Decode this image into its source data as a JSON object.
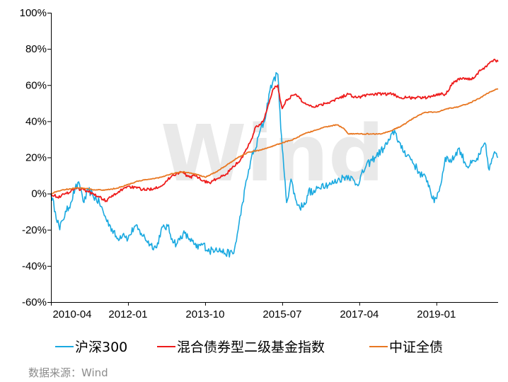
{
  "chart_data": {
    "type": "line",
    "title": "",
    "xlabel": "",
    "ylabel": "",
    "ylim": [
      -60,
      100
    ],
    "y_ticks": [
      -60,
      -40,
      -20,
      0,
      20,
      40,
      60,
      80,
      100
    ],
    "y_tick_labels": [
      "-60%",
      "-40%",
      "-20%",
      "0%",
      "20%",
      "40%",
      "60%",
      "80%",
      "100%"
    ],
    "x_tick_labels": [
      "2010-04",
      "2012-01",
      "2013-10",
      "2015-07",
      "2017-04",
      "2019-01"
    ],
    "x_tick_positions": [
      2010.25,
      2012.0,
      2013.75,
      2015.5,
      2017.25,
      2019.0
    ],
    "xlim": [
      2010.25,
      2020.4
    ],
    "grid": false,
    "legend_position": "bottom",
    "watermark": "Wind",
    "series": [
      {
        "name": "沪深300",
        "color": "#1aa9e0",
        "x": [
          2010.25,
          2010.35,
          2010.45,
          2010.5,
          2010.6,
          2010.7,
          2010.8,
          2010.9,
          2011.0,
          2011.1,
          2011.2,
          2011.35,
          2011.5,
          2011.6,
          2011.75,
          2011.9,
          2012.0,
          2012.15,
          2012.3,
          2012.5,
          2012.65,
          2012.75,
          2012.9,
          2013.0,
          2013.1,
          2013.25,
          2013.4,
          2013.55,
          2013.7,
          2013.85,
          2014.0,
          2014.2,
          2014.4,
          2014.5,
          2014.6,
          2014.7,
          2014.8,
          2014.9,
          2015.0,
          2015.1,
          2015.2,
          2015.3,
          2015.4,
          2015.45,
          2015.5,
          2015.55,
          2015.6,
          2015.7,
          2015.8,
          2015.9,
          2016.0,
          2016.05,
          2016.1,
          2016.2,
          2016.4,
          2016.6,
          2016.8,
          2017.0,
          2017.2,
          2017.4,
          2017.6,
          2017.8,
          2017.95,
          2018.05,
          2018.2,
          2018.4,
          2018.6,
          2018.8,
          2018.95,
          2019.1,
          2019.2,
          2019.35,
          2019.5,
          2019.7,
          2019.9,
          2020.0,
          2020.1,
          2020.2,
          2020.3,
          2020.4
        ],
        "values": [
          0,
          -10,
          -20,
          -15,
          -10,
          -5,
          3,
          5,
          -5,
          2,
          -1,
          -5,
          -14,
          -18,
          -25,
          -22,
          -25,
          -18,
          -22,
          -28,
          -30,
          -20,
          -18,
          -25,
          -28,
          -22,
          -25,
          -30,
          -28,
          -32,
          -30,
          -33,
          -33,
          -20,
          -5,
          8,
          20,
          25,
          35,
          40,
          55,
          63,
          66,
          45,
          25,
          10,
          -5,
          8,
          -3,
          -8,
          -5,
          -5,
          2,
          0,
          5,
          5,
          8,
          10,
          5,
          15,
          20,
          25,
          30,
          35,
          25,
          20,
          12,
          7,
          -5,
          5,
          20,
          18,
          25,
          15,
          18,
          22,
          28,
          13,
          22,
          20
        ],
        "x_note": "",
        "points_note": ""
      },
      {
        "name": "混合债券型二级基金指数",
        "color": "#ee1c1c",
        "x": [
          2010.25,
          2010.4,
          2010.6,
          2010.8,
          2011.0,
          2011.2,
          2011.35,
          2011.5,
          2011.6,
          2011.75,
          2011.9,
          2012.0,
          2012.2,
          2012.4,
          2012.6,
          2012.8,
          2013.0,
          2013.2,
          2013.4,
          2013.55,
          2013.7,
          2013.85,
          2014.0,
          2014.2,
          2014.4,
          2014.6,
          2014.8,
          2014.9,
          2015.0,
          2015.1,
          2015.2,
          2015.3,
          2015.4,
          2015.45,
          2015.5,
          2015.6,
          2015.8,
          2016.0,
          2016.2,
          2016.5,
          2016.8,
          2017.0,
          2017.2,
          2017.5,
          2017.8,
          2018.0,
          2018.2,
          2018.5,
          2018.8,
          2019.0,
          2019.2,
          2019.4,
          2019.6,
          2019.8,
          2020.0,
          2020.1,
          2020.2,
          2020.3,
          2020.4
        ],
        "values": [
          0,
          -2,
          0,
          3,
          2,
          0,
          -2,
          -4,
          -2,
          0,
          3,
          4,
          3,
          2,
          3,
          5,
          10,
          12,
          9,
          10,
          7,
          6,
          8,
          10,
          15,
          20,
          30,
          37,
          38,
          42,
          50,
          58,
          60,
          52,
          47,
          52,
          55,
          50,
          48,
          50,
          53,
          55,
          53,
          55,
          55,
          55,
          53,
          53,
          53,
          55,
          55,
          62,
          64,
          63,
          68,
          70,
          72,
          74,
          73
        ]
      },
      {
        "name": "中证全债",
        "color": "#e87722",
        "x": [
          2010.25,
          2010.5,
          2010.8,
          2011.0,
          2011.25,
          2011.5,
          2011.75,
          2012.0,
          2012.25,
          2012.5,
          2012.75,
          2013.0,
          2013.25,
          2013.5,
          2013.75,
          2014.0,
          2014.25,
          2014.5,
          2014.75,
          2015.0,
          2015.25,
          2015.5,
          2015.75,
          2016.0,
          2016.25,
          2016.5,
          2016.75,
          2016.9,
          2017.0,
          2017.25,
          2017.5,
          2017.75,
          2018.0,
          2018.25,
          2018.5,
          2018.75,
          2019.0,
          2019.25,
          2019.5,
          2019.75,
          2020.0,
          2020.2,
          2020.4
        ],
        "values": [
          0,
          2,
          3,
          3,
          2,
          2,
          3,
          5,
          7,
          8,
          9,
          11,
          12,
          11,
          9,
          12,
          16,
          20,
          23,
          24,
          26,
          28,
          30,
          33,
          35,
          37,
          38,
          36,
          33,
          33,
          33,
          33,
          35,
          38,
          42,
          45,
          45,
          47,
          48,
          50,
          53,
          56,
          58
        ]
      }
    ]
  },
  "source_text": "数据来源：Wind"
}
